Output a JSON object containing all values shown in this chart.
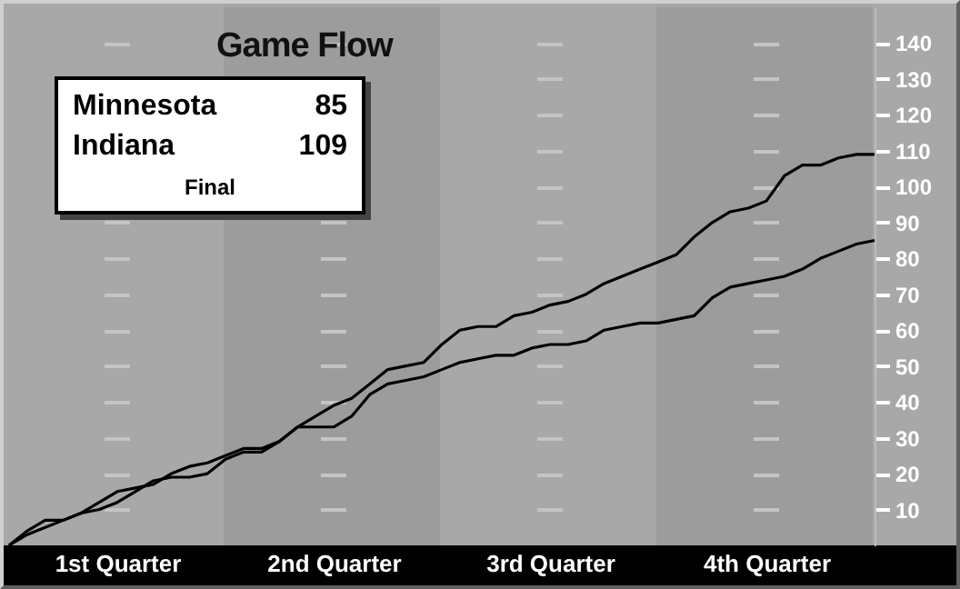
{
  "chart_data": {
    "type": "line",
    "title": "Game Flow",
    "annotations": [
      "Minnesota",
      "85",
      "Indiana",
      "109",
      "Final"
    ],
    "categories": [
      null,
      null,
      null,
      null,
      null,
      null,
      "1st Quarter",
      null,
      null,
      null,
      null,
      null,
      null,
      null,
      null,
      null,
      null,
      null,
      "2nd Quarter",
      null,
      null,
      null,
      null,
      null,
      null,
      null,
      null,
      null,
      null,
      null,
      "3rd Quarter",
      null,
      null,
      null,
      null,
      null,
      null,
      null,
      null,
      null,
      null,
      null,
      "4th Quarter",
      null,
      null,
      null,
      null,
      null,
      null
    ],
    "ylim": [
      0,
      150
    ],
    "yticks": [
      10,
      20,
      30,
      40,
      50,
      60,
      70,
      80,
      90,
      100,
      110,
      120,
      130,
      140
    ],
    "grid": "y",
    "series": [
      {
        "color": "#000000",
        "values": [
          0,
          3,
          5,
          7,
          9,
          10,
          12,
          15,
          18,
          19,
          19,
          20,
          24,
          26,
          26,
          29,
          33,
          33,
          33,
          36,
          42,
          45,
          46,
          47,
          49,
          51,
          52,
          53,
          53,
          55,
          56,
          56,
          57,
          60,
          61,
          62,
          62,
          63,
          64,
          69,
          72,
          73,
          74,
          75,
          77,
          80,
          82,
          84,
          85
        ]
      },
      {
        "color": "#000000",
        "values": [
          0,
          4,
          7,
          7,
          9,
          12,
          15,
          16,
          17,
          20,
          22,
          23,
          25,
          27,
          27,
          29,
          33,
          36,
          39,
          41,
          45,
          49,
          50,
          51,
          56,
          60,
          61,
          61,
          64,
          65,
          67,
          68,
          70,
          73,
          75,
          77,
          79,
          81,
          86,
          90,
          93,
          94,
          96,
          103,
          106,
          106,
          108,
          109,
          109
        ]
      }
    ]
  }
}
